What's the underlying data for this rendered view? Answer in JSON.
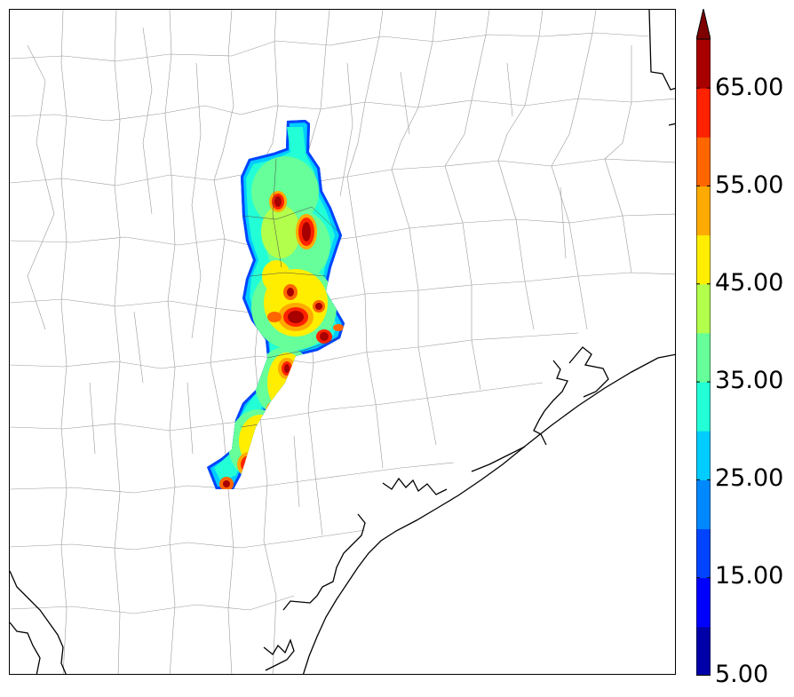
{
  "colorbar": {
    "tick_labels": [
      "65.00",
      "55.00",
      "45.00",
      "35.00",
      "25.00",
      "15.00",
      "5.00"
    ],
    "levels": [
      5,
      10,
      15,
      20,
      25,
      30,
      35,
      40,
      45,
      50,
      55,
      60,
      65,
      70
    ],
    "colors": [
      "#0000a8",
      "#0000ff",
      "#0044ff",
      "#0088ff",
      "#00ccff",
      "#22ffd6",
      "#66ff99",
      "#b2ff4c",
      "#ffee00",
      "#ffaa00",
      "#ff6600",
      "#ff2200",
      "#a80000"
    ],
    "extend": "max",
    "extend_color": "#7f0000"
  },
  "map": {
    "coastline_color": "#000000",
    "county_line_color": "#9a9a9a"
  }
}
